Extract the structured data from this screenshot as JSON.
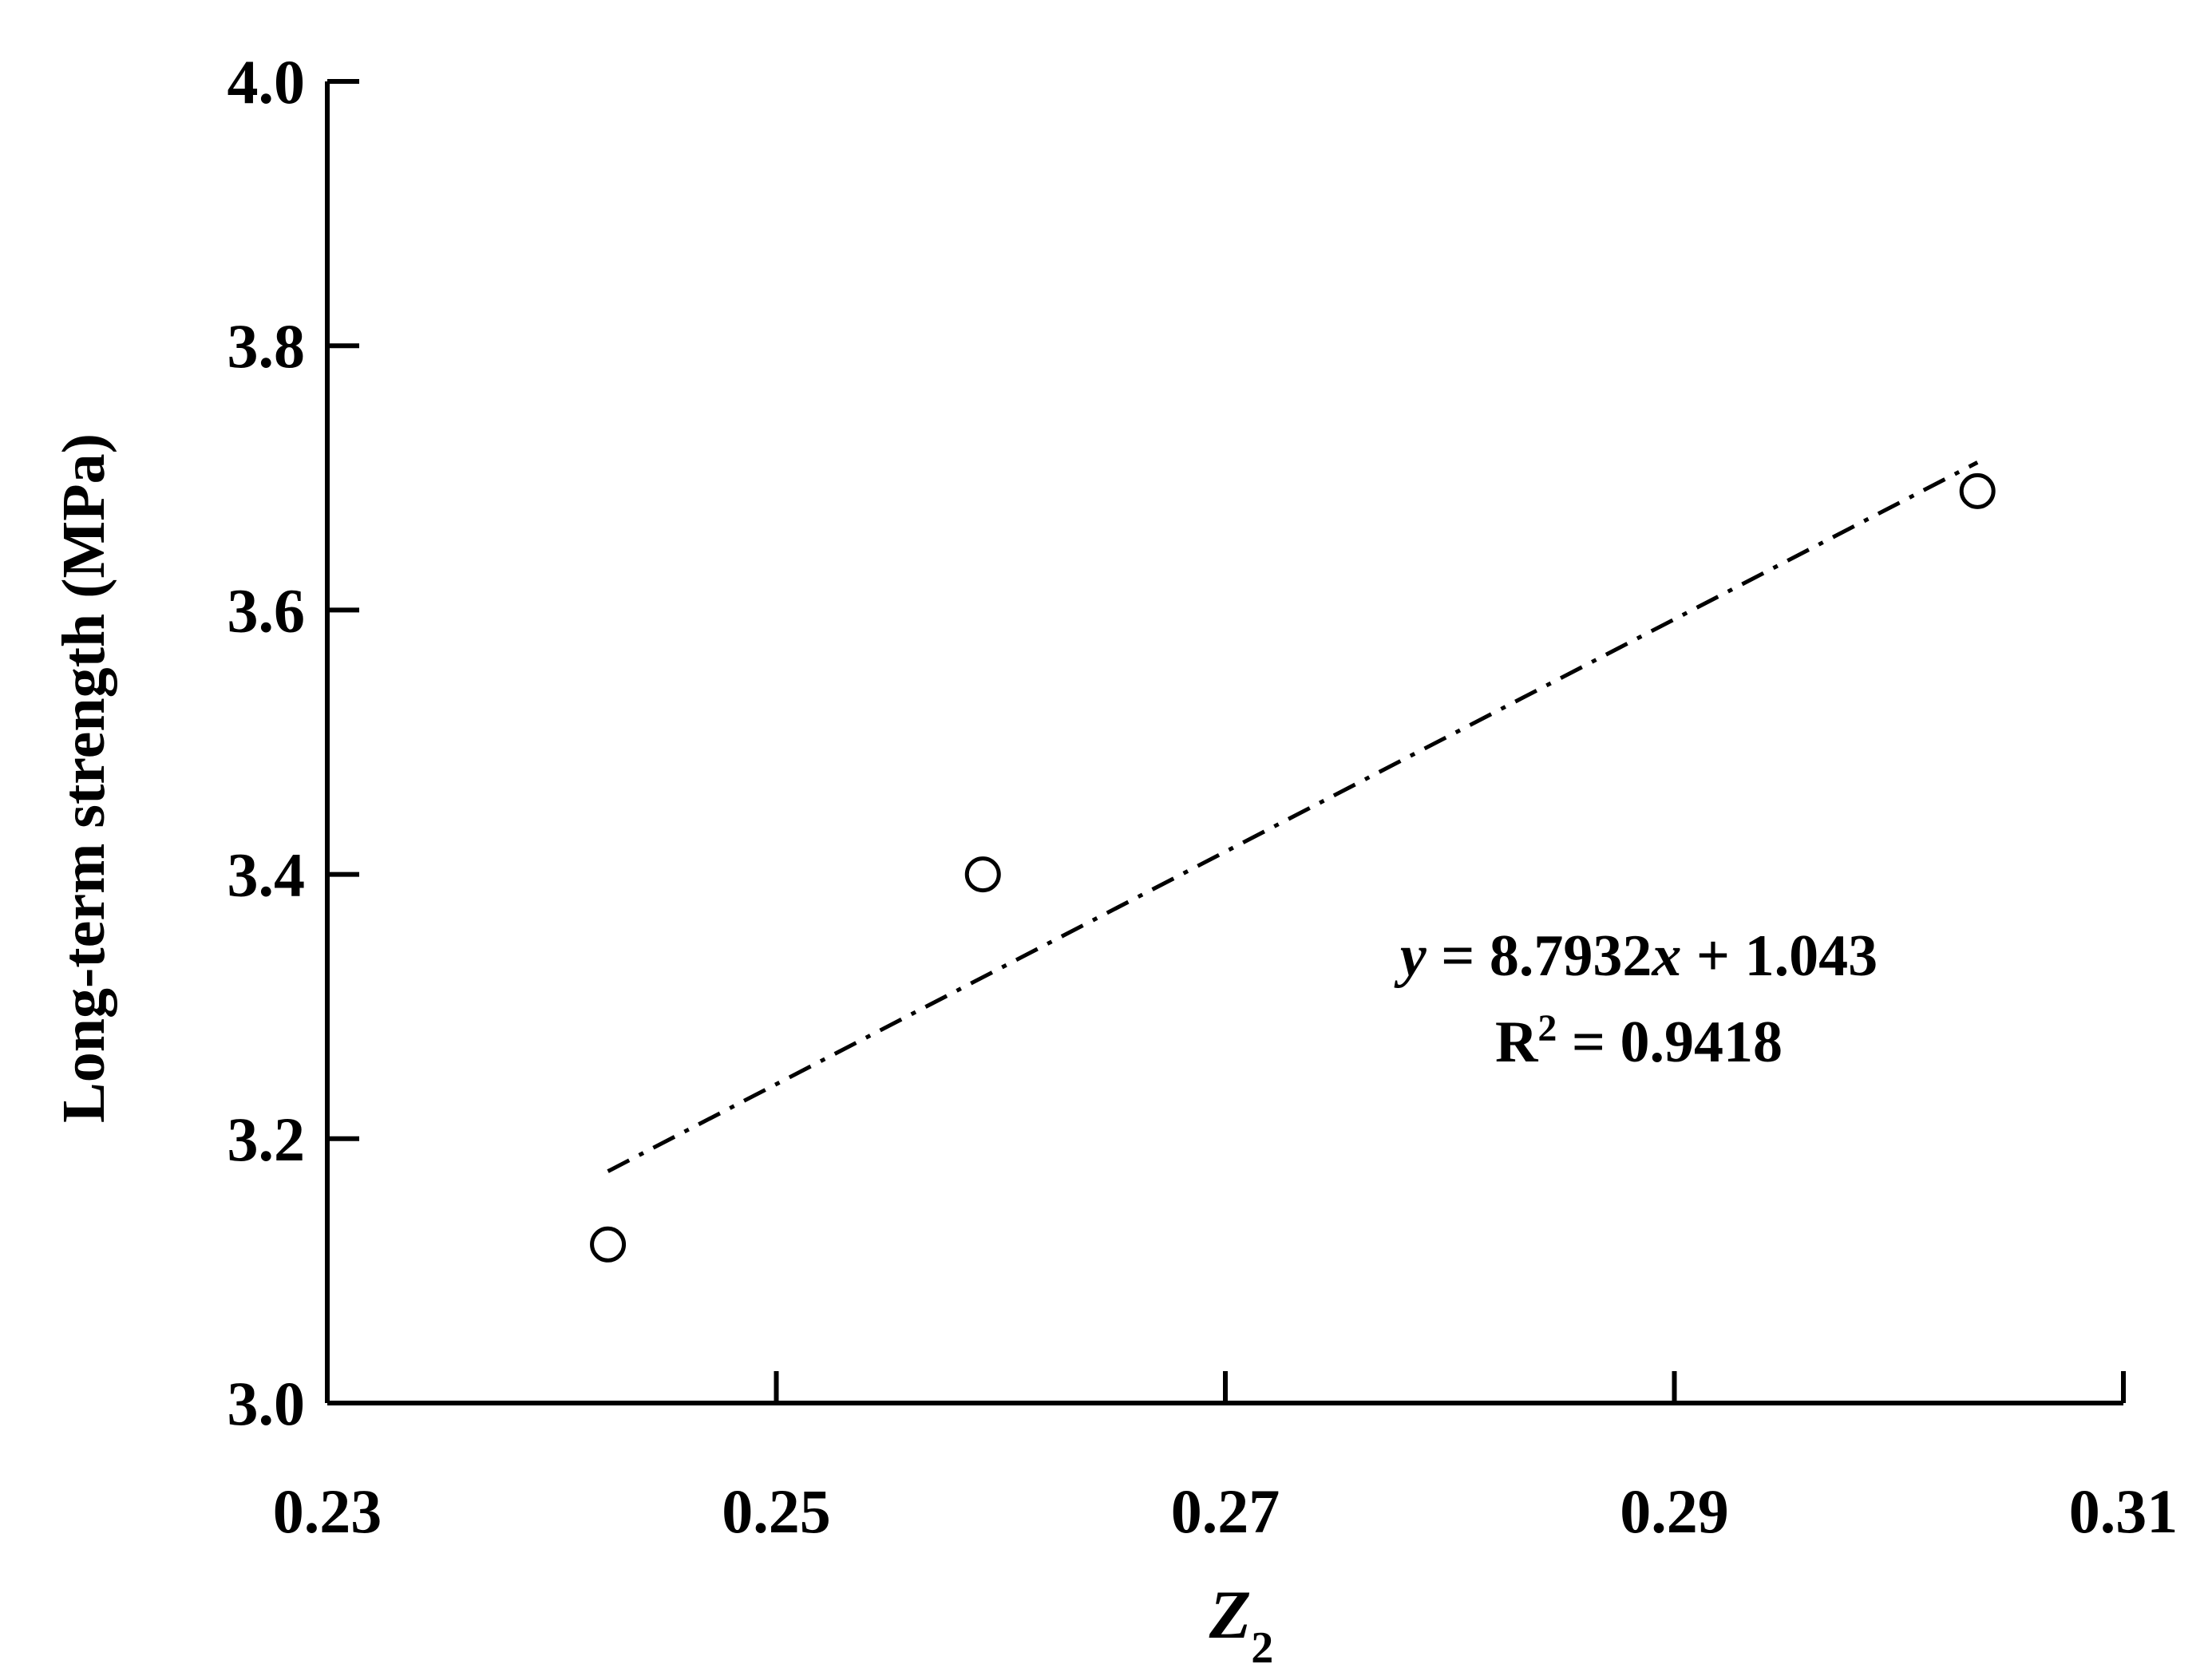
{
  "chart_data": {
    "type": "scatter",
    "xlabel": "Z",
    "xlabel_sub": "2",
    "ylabel": "Long-term strength (MPa)",
    "xlim": [
      0.23,
      0.31
    ],
    "ylim": [
      3.0,
      4.0
    ],
    "x_ticks": [
      0.23,
      0.25,
      0.27,
      0.29,
      0.31
    ],
    "x_tick_labels": [
      "0.23",
      "0.25",
      "0.27",
      "0.29",
      "0.31"
    ],
    "y_ticks": [
      3.0,
      3.2,
      3.4,
      3.6,
      3.8,
      4.0
    ],
    "y_tick_labels": [
      "3.0",
      "3.2",
      "3.4",
      "3.6",
      "3.8",
      "4.0"
    ],
    "grid": false,
    "legend": "none",
    "series": [
      {
        "marker": "open-circle",
        "x": [
          0.2425,
          0.2592,
          0.3035
        ],
        "y": [
          3.12,
          3.4,
          3.69
        ]
      }
    ],
    "trendline": {
      "style": "dash-dot",
      "slope": 8.7932,
      "intercept": 1.043,
      "x_range": [
        0.2425,
        0.3035
      ]
    },
    "annotation": {
      "eq_y": "y",
      "eq_rest": " = 8.7932",
      "eq_x": "x",
      "eq_tail": " + 1.043",
      "r2_R": "R",
      "r2_sup": "2",
      "r2_rest": " = 0.9418"
    }
  }
}
